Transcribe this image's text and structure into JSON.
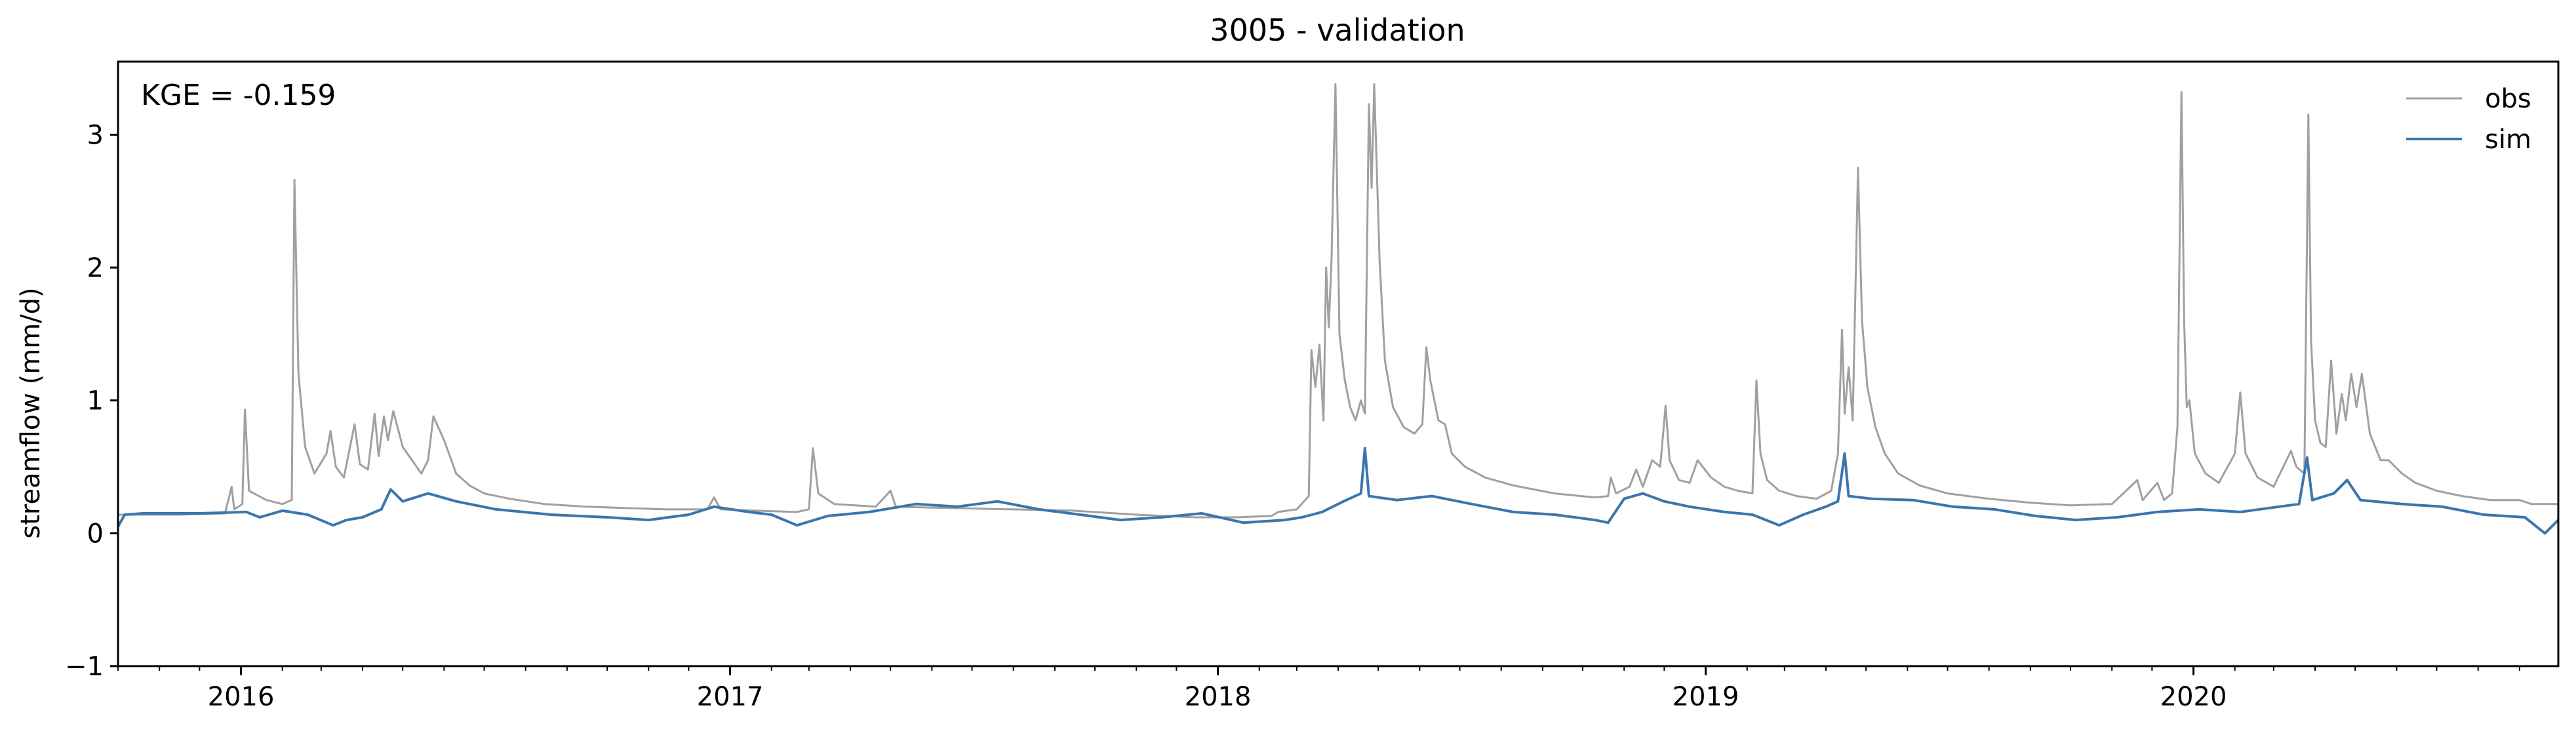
{
  "chart_data": {
    "type": "line",
    "title": "3005 - validation",
    "xlabel": "",
    "ylabel": "streamflow (mm/d)",
    "annotation": "KGE = -0.159",
    "xlim": [
      "2015-10-01",
      "2020-09-30"
    ],
    "ylim": [
      -1,
      3.55
    ],
    "yticks": [
      -1,
      0,
      1,
      2,
      3
    ],
    "xticks": [
      {
        "date": "2016-01-01",
        "label": "2016"
      },
      {
        "date": "2017-01-01",
        "label": "2017"
      },
      {
        "date": "2018-01-01",
        "label": "2018"
      },
      {
        "date": "2019-01-01",
        "label": "2019"
      },
      {
        "date": "2020-01-01",
        "label": "2020"
      }
    ],
    "grid": false,
    "legend": "top-right",
    "series": [
      {
        "name": "obs",
        "color": "#a0a0a0",
        "points": [
          [
            "2015-10-01",
            0.14
          ],
          [
            "2015-11-15",
            0.14
          ],
          [
            "2015-12-20",
            0.15
          ],
          [
            "2015-12-25",
            0.35
          ],
          [
            "2015-12-27",
            0.18
          ],
          [
            "2016-01-02",
            0.22
          ],
          [
            "2016-01-04",
            0.93
          ],
          [
            "2016-01-07",
            0.32
          ],
          [
            "2016-01-20",
            0.25
          ],
          [
            "2016-02-01",
            0.22
          ],
          [
            "2016-02-08",
            0.25
          ],
          [
            "2016-02-10",
            2.66
          ],
          [
            "2016-02-13",
            1.2
          ],
          [
            "2016-02-18",
            0.65
          ],
          [
            "2016-02-25",
            0.45
          ],
          [
            "2016-03-05",
            0.6
          ],
          [
            "2016-03-08",
            0.77
          ],
          [
            "2016-03-12",
            0.5
          ],
          [
            "2016-03-18",
            0.42
          ],
          [
            "2016-03-26",
            0.82
          ],
          [
            "2016-03-30",
            0.52
          ],
          [
            "2016-04-05",
            0.48
          ],
          [
            "2016-04-10",
            0.9
          ],
          [
            "2016-04-13",
            0.58
          ],
          [
            "2016-04-17",
            0.88
          ],
          [
            "2016-04-20",
            0.7
          ],
          [
            "2016-04-24",
            0.92
          ],
          [
            "2016-05-01",
            0.65
          ],
          [
            "2016-05-08",
            0.55
          ],
          [
            "2016-05-15",
            0.45
          ],
          [
            "2016-05-20",
            0.55
          ],
          [
            "2016-05-24",
            0.88
          ],
          [
            "2016-06-01",
            0.7
          ],
          [
            "2016-06-10",
            0.45
          ],
          [
            "2016-06-20",
            0.36
          ],
          [
            "2016-07-01",
            0.3
          ],
          [
            "2016-07-20",
            0.26
          ],
          [
            "2016-08-15",
            0.22
          ],
          [
            "2016-09-15",
            0.2
          ],
          [
            "2016-10-15",
            0.19
          ],
          [
            "2016-11-15",
            0.18
          ],
          [
            "2016-12-15",
            0.18
          ],
          [
            "2016-12-20",
            0.27
          ],
          [
            "2016-12-25",
            0.18
          ],
          [
            "2017-01-20",
            0.17
          ],
          [
            "2017-02-20",
            0.16
          ],
          [
            "2017-03-01",
            0.18
          ],
          [
            "2017-03-04",
            0.64
          ],
          [
            "2017-03-08",
            0.3
          ],
          [
            "2017-03-20",
            0.22
          ],
          [
            "2017-04-20",
            0.2
          ],
          [
            "2017-05-01",
            0.32
          ],
          [
            "2017-05-05",
            0.2
          ],
          [
            "2017-06-15",
            0.19
          ],
          [
            "2017-08-01",
            0.18
          ],
          [
            "2017-09-15",
            0.17
          ],
          [
            "2017-11-01",
            0.14
          ],
          [
            "2017-12-15",
            0.12
          ],
          [
            "2018-01-15",
            0.12
          ],
          [
            "2018-02-10",
            0.13
          ],
          [
            "2018-02-15",
            0.16
          ],
          [
            "2018-03-01",
            0.18
          ],
          [
            "2018-03-10",
            0.28
          ],
          [
            "2018-03-12",
            1.38
          ],
          [
            "2018-03-15",
            1.1
          ],
          [
            "2018-03-18",
            1.42
          ],
          [
            "2018-03-21",
            0.85
          ],
          [
            "2018-03-23",
            2.0
          ],
          [
            "2018-03-25",
            1.55
          ],
          [
            "2018-03-27",
            2.05
          ],
          [
            "2018-03-30",
            3.38
          ],
          [
            "2018-04-02",
            1.5
          ],
          [
            "2018-04-06",
            1.15
          ],
          [
            "2018-04-10",
            0.95
          ],
          [
            "2018-04-14",
            0.85
          ],
          [
            "2018-04-18",
            1.0
          ],
          [
            "2018-04-21",
            0.9
          ],
          [
            "2018-04-24",
            3.23
          ],
          [
            "2018-04-26",
            2.6
          ],
          [
            "2018-04-28",
            3.38
          ],
          [
            "2018-05-02",
            2.05
          ],
          [
            "2018-05-06",
            1.3
          ],
          [
            "2018-05-12",
            0.95
          ],
          [
            "2018-05-20",
            0.8
          ],
          [
            "2018-05-28",
            0.75
          ],
          [
            "2018-06-03",
            0.82
          ],
          [
            "2018-06-06",
            1.4
          ],
          [
            "2018-06-09",
            1.15
          ],
          [
            "2018-06-15",
            0.85
          ],
          [
            "2018-06-20",
            0.82
          ],
          [
            "2018-06-25",
            0.6
          ],
          [
            "2018-07-05",
            0.5
          ],
          [
            "2018-07-20",
            0.42
          ],
          [
            "2018-08-10",
            0.36
          ],
          [
            "2018-09-10",
            0.3
          ],
          [
            "2018-10-10",
            0.27
          ],
          [
            "2018-10-20",
            0.28
          ],
          [
            "2018-10-22",
            0.42
          ],
          [
            "2018-10-26",
            0.3
          ],
          [
            "2018-11-05",
            0.35
          ],
          [
            "2018-11-10",
            0.48
          ],
          [
            "2018-11-15",
            0.35
          ],
          [
            "2018-11-22",
            0.55
          ],
          [
            "2018-11-28",
            0.5
          ],
          [
            "2018-12-02",
            0.96
          ],
          [
            "2018-12-05",
            0.55
          ],
          [
            "2018-12-12",
            0.4
          ],
          [
            "2018-12-20",
            0.38
          ],
          [
            "2018-12-26",
            0.55
          ],
          [
            "2019-01-05",
            0.42
          ],
          [
            "2019-01-15",
            0.35
          ],
          [
            "2019-01-25",
            0.32
          ],
          [
            "2019-02-05",
            0.3
          ],
          [
            "2019-02-08",
            1.15
          ],
          [
            "2019-02-11",
            0.6
          ],
          [
            "2019-02-16",
            0.4
          ],
          [
            "2019-02-25",
            0.32
          ],
          [
            "2019-03-10",
            0.28
          ],
          [
            "2019-03-25",
            0.26
          ],
          [
            "2019-04-05",
            0.32
          ],
          [
            "2019-04-10",
            0.6
          ],
          [
            "2019-04-13",
            1.53
          ],
          [
            "2019-04-15",
            0.9
          ],
          [
            "2019-04-18",
            1.25
          ],
          [
            "2019-04-21",
            0.85
          ],
          [
            "2019-04-25",
            2.75
          ],
          [
            "2019-04-28",
            1.6
          ],
          [
            "2019-05-02",
            1.1
          ],
          [
            "2019-05-08",
            0.8
          ],
          [
            "2019-05-15",
            0.6
          ],
          [
            "2019-05-25",
            0.45
          ],
          [
            "2019-06-10",
            0.36
          ],
          [
            "2019-07-01",
            0.3
          ],
          [
            "2019-08-01",
            0.26
          ],
          [
            "2019-09-01",
            0.23
          ],
          [
            "2019-10-01",
            0.21
          ],
          [
            "2019-11-01",
            0.22
          ],
          [
            "2019-11-20",
            0.4
          ],
          [
            "2019-11-24",
            0.25
          ],
          [
            "2019-12-05",
            0.38
          ],
          [
            "2019-12-10",
            0.25
          ],
          [
            "2019-12-16",
            0.3
          ],
          [
            "2019-12-20",
            0.8
          ],
          [
            "2019-12-23",
            3.32
          ],
          [
            "2019-12-25",
            1.6
          ],
          [
            "2019-12-27",
            0.95
          ],
          [
            "2019-12-29",
            1.0
          ],
          [
            "2020-01-02",
            0.6
          ],
          [
            "2020-01-10",
            0.45
          ],
          [
            "2020-01-20",
            0.38
          ],
          [
            "2020-02-01",
            0.6
          ],
          [
            "2020-02-05",
            1.06
          ],
          [
            "2020-02-09",
            0.6
          ],
          [
            "2020-02-18",
            0.42
          ],
          [
            "2020-03-01",
            0.35
          ],
          [
            "2020-03-14",
            0.62
          ],
          [
            "2020-03-18",
            0.5
          ],
          [
            "2020-03-24",
            0.45
          ],
          [
            "2020-03-27",
            3.15
          ],
          [
            "2020-03-29",
            1.45
          ],
          [
            "2020-04-01",
            0.85
          ],
          [
            "2020-04-05",
            0.68
          ],
          [
            "2020-04-09",
            0.65
          ],
          [
            "2020-04-13",
            1.3
          ],
          [
            "2020-04-17",
            0.75
          ],
          [
            "2020-04-21",
            1.05
          ],
          [
            "2020-04-24",
            0.85
          ],
          [
            "2020-04-28",
            1.2
          ],
          [
            "2020-05-02",
            0.95
          ],
          [
            "2020-05-06",
            1.2
          ],
          [
            "2020-05-12",
            0.75
          ],
          [
            "2020-05-20",
            0.55
          ],
          [
            "2020-05-26",
            0.55
          ],
          [
            "2020-06-05",
            0.45
          ],
          [
            "2020-06-15",
            0.38
          ],
          [
            "2020-07-01",
            0.32
          ],
          [
            "2020-07-20",
            0.28
          ],
          [
            "2020-08-10",
            0.25
          ],
          [
            "2020-09-01",
            0.25
          ],
          [
            "2020-09-10",
            0.22
          ],
          [
            "2020-09-30",
            0.22
          ]
        ]
      },
      {
        "name": "sim",
        "color": "#3a76ac",
        "points": [
          [
            "2015-10-01",
            0.05
          ],
          [
            "2015-10-06",
            0.14
          ],
          [
            "2015-10-20",
            0.15
          ],
          [
            "2015-12-01",
            0.15
          ],
          [
            "2016-01-05",
            0.16
          ],
          [
            "2016-01-15",
            0.12
          ],
          [
            "2016-02-01",
            0.17
          ],
          [
            "2016-02-20",
            0.14
          ],
          [
            "2016-03-10",
            0.06
          ],
          [
            "2016-03-20",
            0.1
          ],
          [
            "2016-04-01",
            0.12
          ],
          [
            "2016-04-15",
            0.18
          ],
          [
            "2016-04-22",
            0.33
          ],
          [
            "2016-05-01",
            0.24
          ],
          [
            "2016-05-20",
            0.3
          ],
          [
            "2016-06-10",
            0.24
          ],
          [
            "2016-07-10",
            0.18
          ],
          [
            "2016-08-20",
            0.14
          ],
          [
            "2016-10-01",
            0.12
          ],
          [
            "2016-11-01",
            0.1
          ],
          [
            "2016-12-01",
            0.14
          ],
          [
            "2016-12-20",
            0.2
          ],
          [
            "2017-01-15",
            0.16
          ],
          [
            "2017-02-01",
            0.14
          ],
          [
            "2017-02-20",
            0.06
          ],
          [
            "2017-03-15",
            0.13
          ],
          [
            "2017-04-15",
            0.16
          ],
          [
            "2017-05-20",
            0.22
          ],
          [
            "2017-06-20",
            0.2
          ],
          [
            "2017-07-20",
            0.24
          ],
          [
            "2017-08-20",
            0.18
          ],
          [
            "2017-09-20",
            0.14
          ],
          [
            "2017-10-20",
            0.1
          ],
          [
            "2017-11-20",
            0.12
          ],
          [
            "2017-12-20",
            0.15
          ],
          [
            "2018-01-20",
            0.08
          ],
          [
            "2018-02-20",
            0.1
          ],
          [
            "2018-03-05",
            0.12
          ],
          [
            "2018-03-20",
            0.16
          ],
          [
            "2018-04-05",
            0.24
          ],
          [
            "2018-04-18",
            0.3
          ],
          [
            "2018-04-21",
            0.64
          ],
          [
            "2018-04-24",
            0.28
          ],
          [
            "2018-05-15",
            0.25
          ],
          [
            "2018-06-10",
            0.28
          ],
          [
            "2018-07-10",
            0.22
          ],
          [
            "2018-08-10",
            0.16
          ],
          [
            "2018-09-10",
            0.14
          ],
          [
            "2018-10-10",
            0.1
          ],
          [
            "2018-10-20",
            0.08
          ],
          [
            "2018-11-01",
            0.26
          ],
          [
            "2018-11-15",
            0.3
          ],
          [
            "2018-12-01",
            0.24
          ],
          [
            "2018-12-20",
            0.2
          ],
          [
            "2019-01-15",
            0.16
          ],
          [
            "2019-02-05",
            0.14
          ],
          [
            "2019-02-25",
            0.06
          ],
          [
            "2019-03-15",
            0.14
          ],
          [
            "2019-04-01",
            0.2
          ],
          [
            "2019-04-10",
            0.24
          ],
          [
            "2019-04-15",
            0.6
          ],
          [
            "2019-04-18",
            0.28
          ],
          [
            "2019-05-05",
            0.26
          ],
          [
            "2019-06-05",
            0.25
          ],
          [
            "2019-07-05",
            0.2
          ],
          [
            "2019-08-05",
            0.18
          ],
          [
            "2019-09-05",
            0.13
          ],
          [
            "2019-10-05",
            0.1
          ],
          [
            "2019-11-05",
            0.12
          ],
          [
            "2019-12-05",
            0.16
          ],
          [
            "2020-01-05",
            0.18
          ],
          [
            "2020-02-05",
            0.16
          ],
          [
            "2020-03-05",
            0.2
          ],
          [
            "2020-03-20",
            0.22
          ],
          [
            "2020-03-26",
            0.57
          ],
          [
            "2020-03-30",
            0.25
          ],
          [
            "2020-04-15",
            0.3
          ],
          [
            "2020-04-25",
            0.4
          ],
          [
            "2020-05-05",
            0.25
          ],
          [
            "2020-06-05",
            0.22
          ],
          [
            "2020-07-05",
            0.2
          ],
          [
            "2020-08-05",
            0.14
          ],
          [
            "2020-09-05",
            0.12
          ],
          [
            "2020-09-20",
            0.0
          ],
          [
            "2020-09-30",
            0.1
          ]
        ]
      }
    ]
  }
}
